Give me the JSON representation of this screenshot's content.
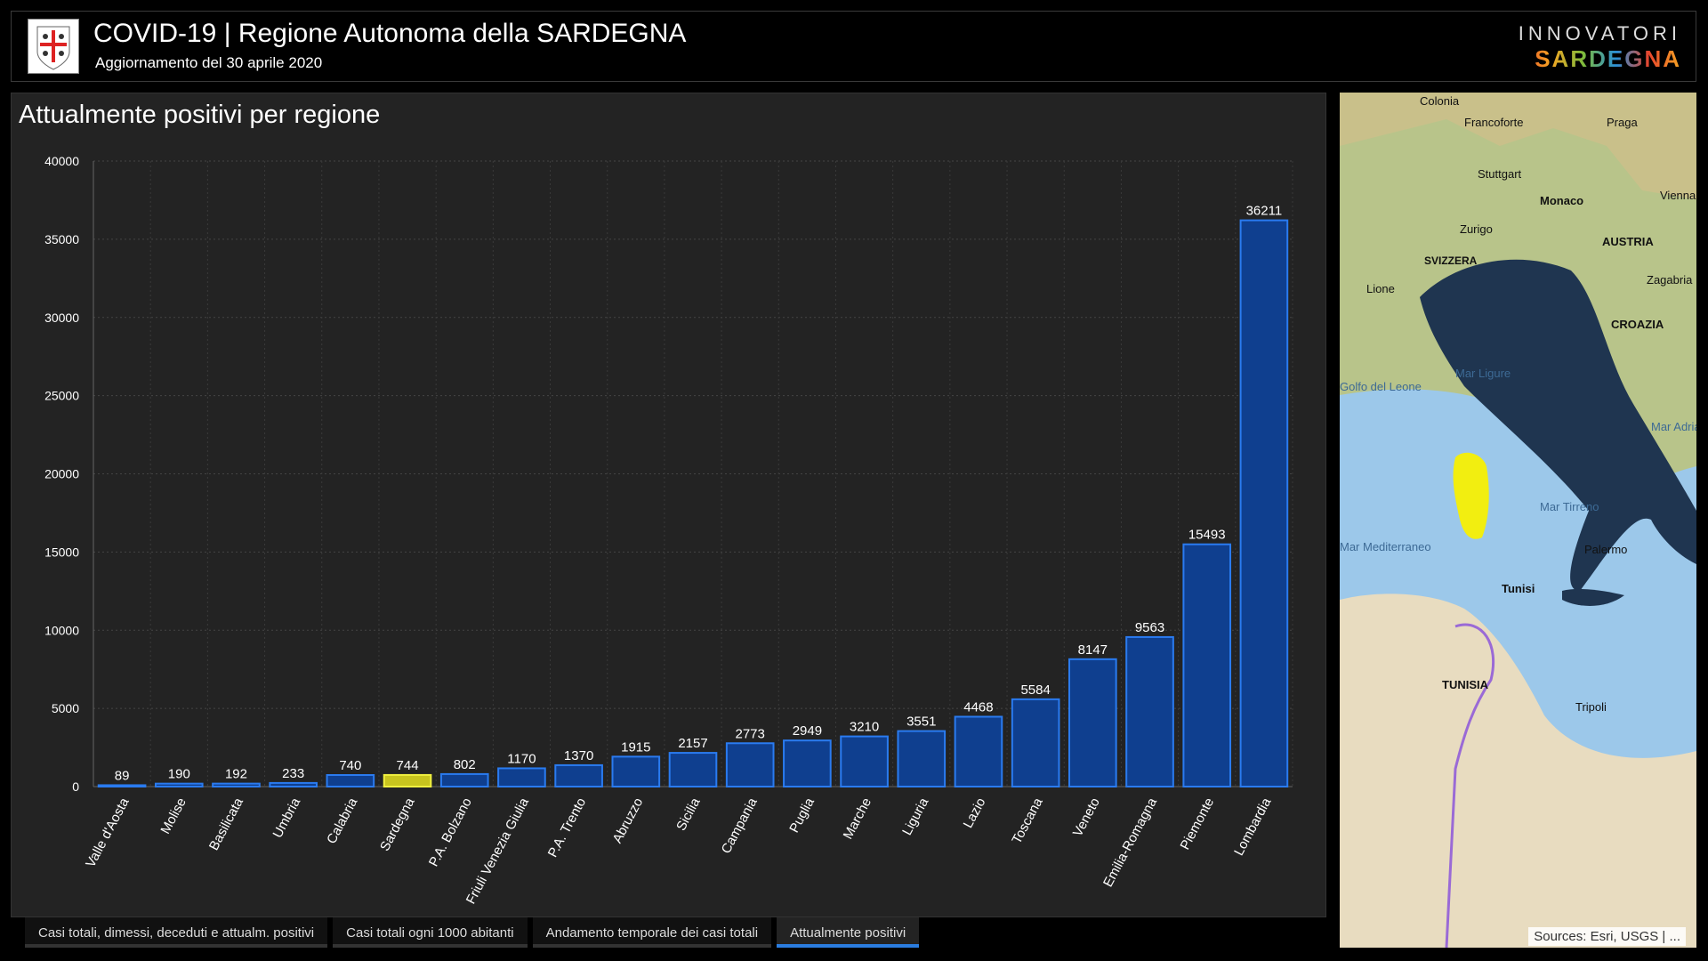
{
  "header": {
    "title": "COVID-19 | Regione Autonoma della SARDEGNA",
    "subtitle": "Aggiornamento del 30 aprile 2020",
    "brand_top": "INNOVATORI",
    "brand_bottom": "SARDEGNA"
  },
  "panel": {
    "title": "Attualmente positivi per regione"
  },
  "tabs": [
    {
      "label": "Casi totali, dimessi, deceduti e attualm. positivi"
    },
    {
      "label": "Casi totali ogni 1000 abitanti"
    },
    {
      "label": "Andamento temporale dei casi totali"
    },
    {
      "label": "Attualmente positivi",
      "active": true
    }
  ],
  "map": {
    "attribution": "Sources: Esri, USGS | ...",
    "labels": [
      "Colonia",
      "Francoforte",
      "Praga",
      "Stuttgart",
      "Monaco",
      "Vienna",
      "Zurigo",
      "AUSTRIA",
      "SVIZZERA",
      "Lione",
      "Zagabria",
      "CROAZIA",
      "Mar Ligure",
      "Golfo del Leone",
      "Mar Mediterraneo",
      "Mar Tirreno",
      "Palermo",
      "Tunisi",
      "TUNISIA",
      "Tripoli",
      "Mar Adriatico"
    ]
  },
  "colors": {
    "bar": "#0f3f8f",
    "bar_border": "#2a7bf0",
    "highlight": "#c8c41e",
    "highlight_border": "#f0f040"
  },
  "chart_data": {
    "type": "bar",
    "title": "Attualmente positivi per regione",
    "categories": [
      "Valle d'Aosta",
      "Molise",
      "Basilicata",
      "Umbria",
      "Calabria",
      "Sardegna",
      "P.A. Bolzano",
      "Friuli Venezia Giulia",
      "P.A. Trento",
      "Abruzzo",
      "Sicilia",
      "Campania",
      "Puglia",
      "Marche",
      "Liguria",
      "Lazio",
      "Toscana",
      "Veneto",
      "Emilia-Romagna",
      "Piemonte",
      "Lombardia"
    ],
    "values": [
      89,
      190,
      192,
      233,
      740,
      744,
      802,
      1170,
      1370,
      1915,
      2157,
      2773,
      2949,
      3210,
      3551,
      4468,
      5584,
      8147,
      9563,
      15493,
      36211
    ],
    "highlight": "Sardegna",
    "ylim": [
      0,
      40000
    ],
    "yticks": [
      0,
      5000,
      10000,
      15000,
      20000,
      25000,
      30000,
      35000,
      40000
    ],
    "grid": true
  }
}
